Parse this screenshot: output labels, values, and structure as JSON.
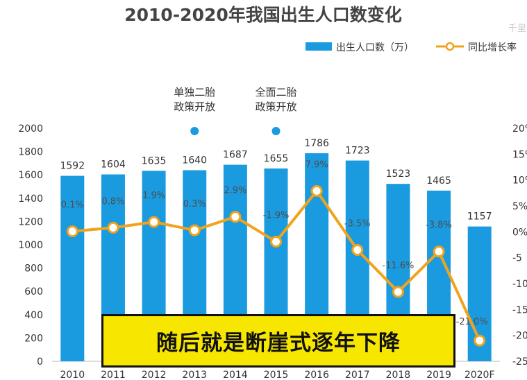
{
  "watermark": "千里",
  "caption": "随后就是断崖式逐年下降",
  "colors": {
    "bar": "#1a9be0",
    "line": "#f0a31c",
    "dot": "#1a9be0"
  },
  "annotations": [
    {
      "lines": [
        "单独二胎",
        "政策开放"
      ],
      "year": "2013"
    },
    {
      "lines": [
        "全面二胎",
        "政策开放"
      ],
      "year": "2015"
    }
  ],
  "chart_data": {
    "type": "bar",
    "title": "2010-2020年我国出生人口数变化",
    "legend_position": "top-right",
    "categories": [
      "2010",
      "2011",
      "2012",
      "2013",
      "2014",
      "2015",
      "2016",
      "2017",
      "2018",
      "2019",
      "2020F"
    ],
    "series": [
      {
        "name": "出生人口数（万）",
        "type": "bar",
        "axis": "left",
        "values": [
          1592,
          1604,
          1635,
          1640,
          1687,
          1655,
          1786,
          1723,
          1523,
          1465,
          1157
        ],
        "labels": [
          "1592",
          "1604",
          "1635",
          "1640",
          "1687",
          "1655",
          "1786",
          "1723",
          "1523",
          "1465",
          "1157"
        ]
      },
      {
        "name": "同比增长率",
        "type": "line",
        "axis": "right",
        "values": [
          0.1,
          0.8,
          1.9,
          0.3,
          2.9,
          -1.9,
          7.9,
          -3.5,
          -11.6,
          -3.8,
          -21.0
        ],
        "labels": [
          "0.1%",
          "0.8%",
          "1.9%",
          "0.3%",
          "2.9%",
          "-1.9%",
          "7.9%",
          "-3.5%",
          "-11.6%",
          "-3.8%",
          "-21.0%"
        ]
      }
    ],
    "y_left": {
      "range": [
        0,
        2000
      ],
      "ticks": [
        "0",
        "200",
        "400",
        "600",
        "800",
        "1000",
        "1200",
        "1400",
        "1600",
        "1800",
        "2000"
      ]
    },
    "y_right": {
      "range": [
        -25,
        20
      ],
      "ticks": [
        "-25",
        "-20",
        "-15",
        "-10",
        "-5",
        "0%",
        "5%",
        "10%",
        "15%",
        "20%"
      ]
    },
    "grid": false
  }
}
